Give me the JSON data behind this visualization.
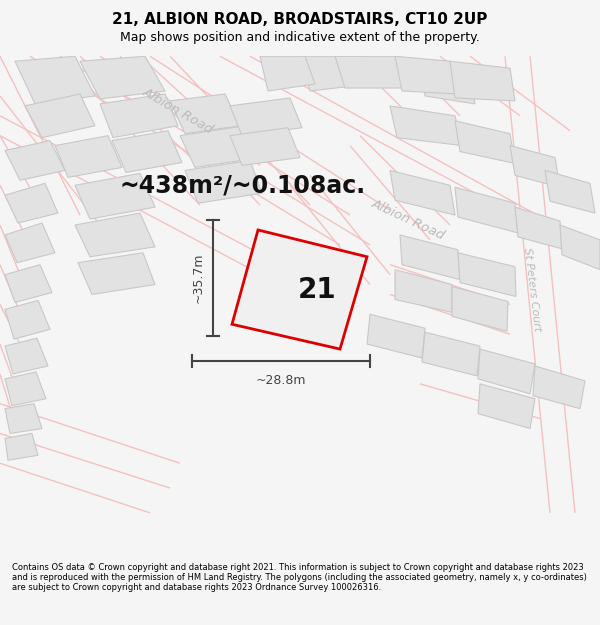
{
  "title": "21, ALBION ROAD, BROADSTAIRS, CT10 2UP",
  "subtitle": "Map shows position and indicative extent of the property.",
  "area_label": "~438m²/~0.108ac.",
  "property_number": "21",
  "dim_width": "~28.8m",
  "dim_height": "~35.7m",
  "road_label_1": "Albion Road",
  "road_label_2": "Albion Road",
  "road_label_3": "St Peters Court",
  "footer_text": "Contains OS data © Crown copyright and database right 2021. This information is subject to Crown copyright and database rights 2023 and is reproduced with the permission of HM Land Registry. The polygons (including the associated geometry, namely x, y co-ordinates) are subject to Crown copyright and database rights 2023 Ordnance Survey 100026316.",
  "bg_color": "#f5f5f5",
  "map_bg": "#ffffff",
  "building_fill": "#e2e2e2",
  "building_edge": "#c8c8c8",
  "road_color": "#f5c0c0",
  "road_lw": 1.0,
  "property_edge_color": "#dd0000",
  "property_fill": "#f0f0f0",
  "road_label_color": "#bbbbbb",
  "dim_color": "#444444",
  "area_label_fontsize": 17,
  "property_number_fontsize": 20,
  "title_fontsize": 11,
  "subtitle_fontsize": 9,
  "footer_fontsize": 6.0
}
